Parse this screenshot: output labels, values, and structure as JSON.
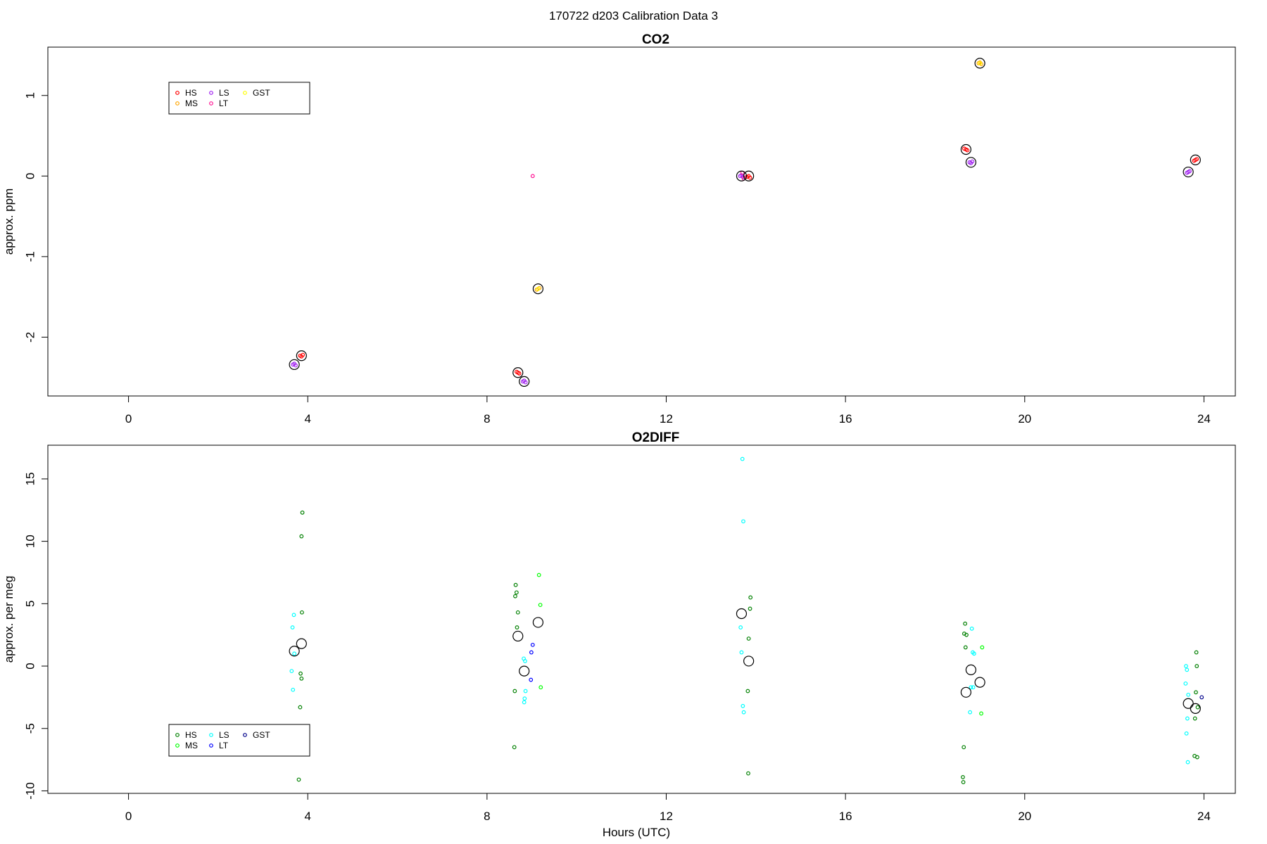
{
  "page_title": "170722   d203   Calibration Data 3",
  "x_axis_label": "Hours (UTC)",
  "legend_colors": {
    "CO2": {
      "HS": "#ff0000",
      "MS": "#ffa500",
      "LS": "#a020f0",
      "LT": "#ff1493",
      "GST": "#ffff00"
    },
    "O2DIFF": {
      "HS": "#008000",
      "MS": "#00ff00",
      "LS": "#00ffff",
      "LT": "#0000ff",
      "GST": "#00008b"
    }
  },
  "chart_data": [
    {
      "type": "scatter",
      "title": "CO2",
      "xlabel": "",
      "ylabel": "approx. ppm",
      "xlim": [
        -1.8,
        24.7
      ],
      "ylim": [
        -2.73,
        1.6
      ],
      "xticks": [
        0,
        4,
        8,
        12,
        16,
        20,
        24
      ],
      "xtick_labels": [
        "0",
        "4",
        "8",
        "12",
        "16",
        "20",
        "24"
      ],
      "yticks": [
        -2,
        -1,
        0,
        1
      ],
      "ytick_labels": [
        "-2",
        "-1",
        "0",
        "1"
      ],
      "legend": {
        "entries": [
          {
            "label": "HS",
            "color": "#ff0000"
          },
          {
            "label": "MS",
            "color": "#ffa500"
          },
          {
            "label": "LS",
            "color": "#a020f0"
          },
          {
            "label": "LT",
            "color": "#ff1493"
          },
          {
            "label": "GST",
            "color": "#ffff00"
          }
        ],
        "placement": "top-left"
      },
      "series": [
        {
          "name": "HS",
          "color": "#ff0000",
          "points": [
            [
              3.83,
              -2.23
            ],
            [
              3.86,
              -2.24
            ],
            [
              3.89,
              -2.22
            ],
            [
              8.66,
              -2.43
            ],
            [
              8.69,
              -2.44
            ],
            [
              8.72,
              -2.45
            ],
            [
              13.8,
              -0.01
            ],
            [
              13.84,
              0.0
            ],
            [
              13.87,
              -0.02
            ],
            [
              18.65,
              0.34
            ],
            [
              18.69,
              0.33
            ],
            [
              18.72,
              0.32
            ],
            [
              23.78,
              0.19
            ],
            [
              23.81,
              0.2
            ],
            [
              23.84,
              0.21
            ]
          ]
        },
        {
          "name": "MS",
          "color": "#ffa500",
          "points": [
            [
              9.11,
              -1.41
            ],
            [
              9.14,
              -1.4
            ],
            [
              9.17,
              -1.39
            ],
            [
              18.97,
              1.4
            ],
            [
              19.0,
              1.41
            ],
            [
              19.03,
              1.39
            ]
          ]
        },
        {
          "name": "LS",
          "color": "#a020f0",
          "points": [
            [
              3.67,
              -2.34
            ],
            [
              3.7,
              -2.33
            ],
            [
              3.73,
              -2.35
            ],
            [
              8.8,
              -2.55
            ],
            [
              8.83,
              -2.54
            ],
            [
              8.86,
              -2.56
            ],
            [
              13.65,
              0.0
            ],
            [
              13.68,
              0.01
            ],
            [
              13.71,
              -0.01
            ],
            [
              18.77,
              0.17
            ],
            [
              18.8,
              0.16
            ],
            [
              18.83,
              0.18
            ],
            [
              23.62,
              0.04
            ],
            [
              23.65,
              0.05
            ],
            [
              23.68,
              0.06
            ]
          ]
        },
        {
          "name": "LT",
          "color": "#ff1493",
          "points": [
            [
              9.02,
              0.0
            ],
            [
              13.7,
              0.04
            ],
            [
              13.73,
              -0.03
            ]
          ]
        },
        {
          "name": "GST",
          "color": "#ffff00",
          "points": [
            [
              9.14,
              -1.4
            ],
            [
              19.0,
              1.4
            ]
          ]
        }
      ],
      "means": [
        [
          3.7,
          -2.34
        ],
        [
          3.86,
          -2.23
        ],
        [
          8.69,
          -2.44
        ],
        [
          8.83,
          -2.55
        ],
        [
          9.14,
          -1.4
        ],
        [
          13.68,
          0.0
        ],
        [
          13.84,
          0.0
        ],
        [
          18.69,
          0.33
        ],
        [
          18.8,
          0.17
        ],
        [
          19.0,
          1.4
        ],
        [
          23.65,
          0.05
        ],
        [
          23.81,
          0.2
        ]
      ]
    },
    {
      "type": "scatter",
      "title": "O2DIFF",
      "xlabel": "Hours (UTC)",
      "ylabel": "approx. per meg",
      "xlim": [
        -1.8,
        24.7
      ],
      "ylim": [
        -10.2,
        17.7
      ],
      "xticks": [
        0,
        4,
        8,
        12,
        16,
        20,
        24
      ],
      "xtick_labels": [
        "0",
        "4",
        "8",
        "12",
        "16",
        "20",
        "24"
      ],
      "yticks": [
        -10,
        -5,
        0,
        5,
        10,
        15
      ],
      "ytick_labels": [
        "-10",
        "-5",
        "0",
        "5",
        "10",
        "15"
      ],
      "legend": {
        "entries": [
          {
            "label": "HS",
            "color": "#008000"
          },
          {
            "label": "MS",
            "color": "#00ff00"
          },
          {
            "label": "LS",
            "color": "#00ffff"
          },
          {
            "label": "LT",
            "color": "#0000ff"
          },
          {
            "label": "GST",
            "color": "#00008b"
          }
        ],
        "placement": "bottom-left"
      },
      "series": [
        {
          "name": "HS",
          "color": "#008000",
          "points": [
            [
              3.88,
              12.3
            ],
            [
              3.86,
              10.4
            ],
            [
              3.87,
              4.3
            ],
            [
              3.84,
              -0.6
            ],
            [
              3.86,
              -1.0
            ],
            [
              3.83,
              -3.3
            ],
            [
              3.8,
              -9.1
            ],
            [
              8.64,
              6.5
            ],
            [
              8.66,
              5.9
            ],
            [
              8.63,
              5.6
            ],
            [
              8.69,
              4.3
            ],
            [
              8.67,
              3.1
            ],
            [
              8.62,
              -2.0
            ],
            [
              8.61,
              -6.5
            ],
            [
              13.87,
              4.6
            ],
            [
              13.84,
              2.2
            ],
            [
              13.82,
              -2.0
            ],
            [
              13.83,
              -8.6
            ],
            [
              13.88,
              5.5
            ],
            [
              18.67,
              3.4
            ],
            [
              18.65,
              2.6
            ],
            [
              18.7,
              2.5
            ],
            [
              18.68,
              1.5
            ],
            [
              18.64,
              -6.5
            ],
            [
              18.62,
              -8.9
            ],
            [
              18.63,
              -9.3
            ],
            [
              23.83,
              1.1
            ],
            [
              23.84,
              0.0
            ],
            [
              23.82,
              -2.1
            ],
            [
              23.86,
              -3.3
            ],
            [
              23.8,
              -4.2
            ],
            [
              23.79,
              -7.2
            ],
            [
              23.85,
              -7.3
            ]
          ]
        },
        {
          "name": "MS",
          "color": "#00ff00",
          "points": [
            [
              9.16,
              7.3
            ],
            [
              9.19,
              4.9
            ],
            [
              9.2,
              -1.7
            ],
            [
              19.05,
              1.5
            ],
            [
              19.03,
              -3.8
            ]
          ]
        },
        {
          "name": "LS",
          "color": "#00ffff",
          "points": [
            [
              3.69,
              4.1
            ],
            [
              3.66,
              3.1
            ],
            [
              3.7,
              1.0
            ],
            [
              3.64,
              -0.4
            ],
            [
              3.67,
              -1.9
            ],
            [
              8.82,
              0.6
            ],
            [
              8.85,
              0.4
            ],
            [
              8.86,
              -2.0
            ],
            [
              8.84,
              -2.6
            ],
            [
              8.83,
              -2.9
            ],
            [
              13.7,
              16.6
            ],
            [
              13.72,
              11.6
            ],
            [
              13.66,
              3.1
            ],
            [
              13.68,
              1.1
            ],
            [
              13.71,
              -3.2
            ],
            [
              13.73,
              -3.7
            ],
            [
              18.82,
              3.0
            ],
            [
              18.84,
              1.1
            ],
            [
              18.87,
              1.0
            ],
            [
              18.8,
              -1.7
            ],
            [
              18.85,
              -1.7
            ],
            [
              18.78,
              -3.7
            ],
            [
              23.6,
              0.0
            ],
            [
              23.62,
              -0.3
            ],
            [
              23.59,
              -1.4
            ],
            [
              23.65,
              -2.3
            ],
            [
              23.63,
              -4.2
            ],
            [
              23.61,
              -5.4
            ],
            [
              23.64,
              -7.7
            ]
          ]
        },
        {
          "name": "LT",
          "color": "#0000ff",
          "points": [
            [
              9.02,
              1.7
            ],
            [
              8.99,
              1.1
            ],
            [
              8.98,
              -1.1
            ]
          ]
        },
        {
          "name": "GST",
          "color": "#00008b",
          "points": [
            [
              23.95,
              -2.5
            ]
          ]
        }
      ],
      "means": [
        [
          3.7,
          1.2
        ],
        [
          3.86,
          1.8
        ],
        [
          8.69,
          2.4
        ],
        [
          8.83,
          -0.4
        ],
        [
          9.14,
          3.5
        ],
        [
          13.68,
          4.2
        ],
        [
          13.84,
          0.4
        ],
        [
          18.69,
          -2.1
        ],
        [
          18.8,
          -0.3
        ],
        [
          19.0,
          -1.3
        ],
        [
          23.65,
          -3.0
        ],
        [
          23.81,
          -3.4
        ]
      ]
    }
  ]
}
